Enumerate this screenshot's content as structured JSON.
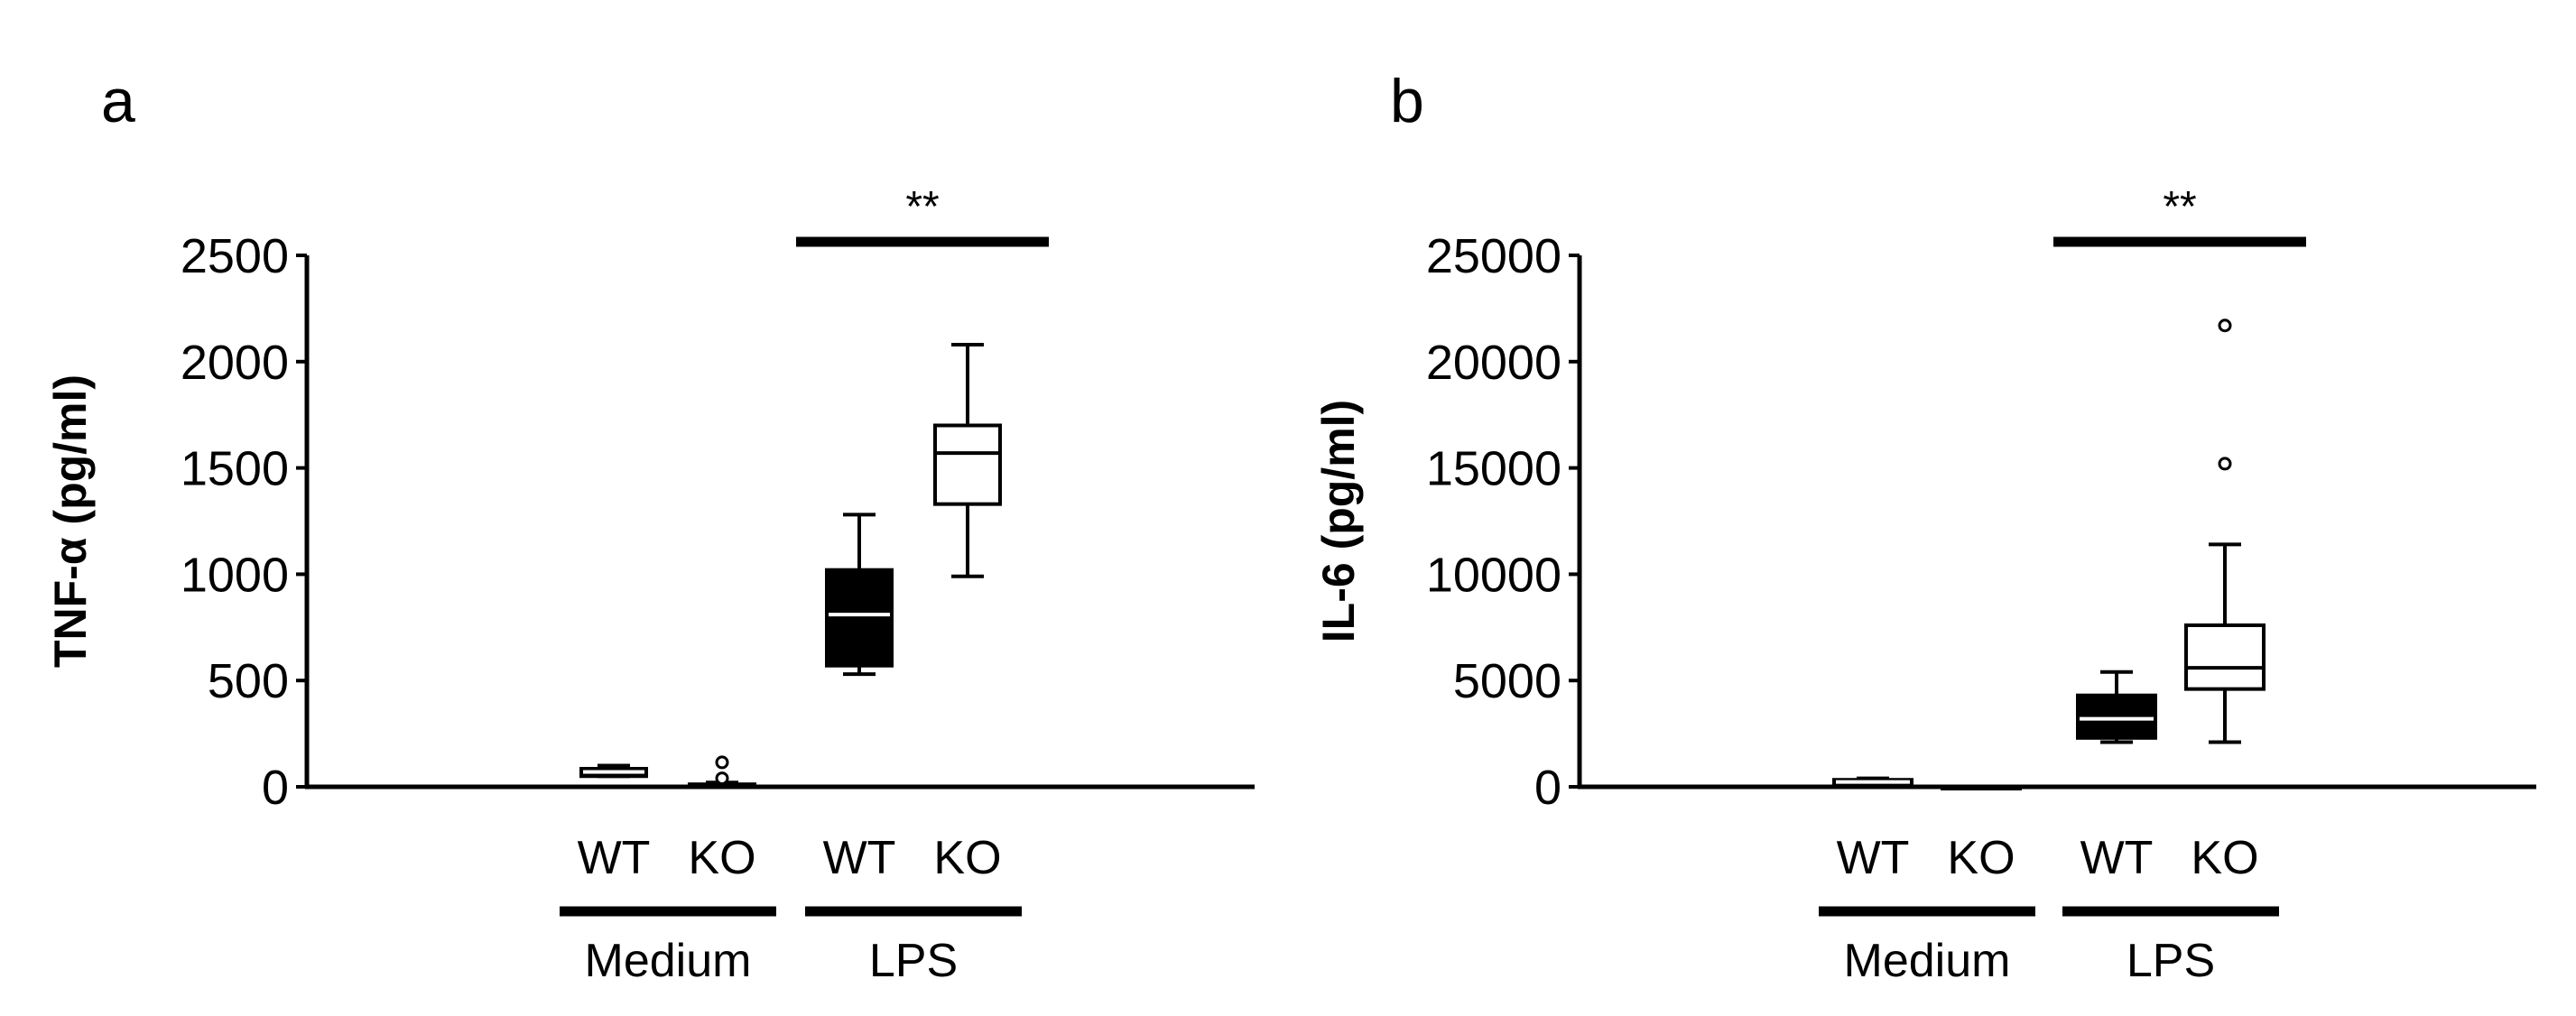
{
  "colors": {
    "wt_fill": "#000000",
    "ko_fill": "#ffffff",
    "axis": "#000000",
    "wt_median": "#ffffff",
    "ko_median": "#000000"
  },
  "chart_data": [
    {
      "type": "box",
      "panel_label": "a",
      "title": "",
      "ylabel": "TNF-α (pg/ml)",
      "ylim": [
        0,
        2500
      ],
      "yticks": [
        "0",
        "500",
        "1000",
        "1500",
        "2000",
        "2500"
      ],
      "ytick_values": [
        0,
        500,
        1000,
        1500,
        2000,
        2500
      ],
      "categories": [
        "WT",
        "KO",
        "WT",
        "KO"
      ],
      "groups": [
        {
          "label": "Medium",
          "members": [
            0,
            1
          ]
        },
        {
          "label": "LPS",
          "members": [
            2,
            3
          ]
        }
      ],
      "series": [
        {
          "category": "WT",
          "group": "Medium",
          "fill": "black",
          "whisker_low": 50,
          "q1": 50,
          "median": 70,
          "q3": 85,
          "whisker_high": 100,
          "outliers": []
        },
        {
          "category": "KO",
          "group": "Medium",
          "fill": "white",
          "whisker_low": 0,
          "q1": 0,
          "median": 5,
          "q3": 12,
          "whisker_high": 20,
          "outliers": [
            40,
            115
          ]
        },
        {
          "category": "WT",
          "group": "LPS",
          "fill": "black",
          "whisker_low": 530,
          "q1": 570,
          "median": 810,
          "q3": 1020,
          "whisker_high": 1280,
          "outliers": []
        },
        {
          "category": "KO",
          "group": "LPS",
          "fill": "white",
          "whisker_low": 990,
          "q1": 1330,
          "median": 1570,
          "q3": 1700,
          "whisker_high": 2080,
          "outliers": []
        }
      ],
      "significance": {
        "label": "**",
        "from": 2,
        "to": 3
      }
    },
    {
      "type": "box",
      "panel_label": "b",
      "title": "",
      "ylabel": "IL-6 (pg/ml)",
      "ylim": [
        0,
        25000
      ],
      "yticks": [
        "0",
        "5000",
        "10000",
        "15000",
        "20000",
        "25000"
      ],
      "ytick_values": [
        0,
        5000,
        10000,
        15000,
        20000,
        25000
      ],
      "categories": [
        "WT",
        "KO",
        "WT",
        "KO"
      ],
      "groups": [
        {
          "label": "Medium",
          "members": [
            0,
            1
          ]
        },
        {
          "label": "LPS",
          "members": [
            2,
            3
          ]
        }
      ],
      "series": [
        {
          "category": "WT",
          "group": "Medium",
          "fill": "black",
          "whisker_low": 100,
          "q1": 150,
          "median": 230,
          "q3": 330,
          "whisker_high": 400,
          "outliers": []
        },
        {
          "category": "KO",
          "group": "Medium",
          "fill": "white",
          "whisker_low": 0,
          "q1": 0,
          "median": 0,
          "q3": 0,
          "whisker_high": 0,
          "outliers": []
        },
        {
          "category": "WT",
          "group": "LPS",
          "fill": "black",
          "whisker_low": 2100,
          "q1": 2300,
          "median": 3200,
          "q3": 4300,
          "whisker_high": 5400,
          "outliers": []
        },
        {
          "category": "KO",
          "group": "LPS",
          "fill": "white",
          "whisker_low": 2100,
          "q1": 4600,
          "median": 5600,
          "q3": 7600,
          "whisker_high": 11400,
          "outliers": [
            15200,
            21700
          ]
        }
      ],
      "significance": {
        "label": "**",
        "from": 2,
        "to": 3
      }
    }
  ]
}
